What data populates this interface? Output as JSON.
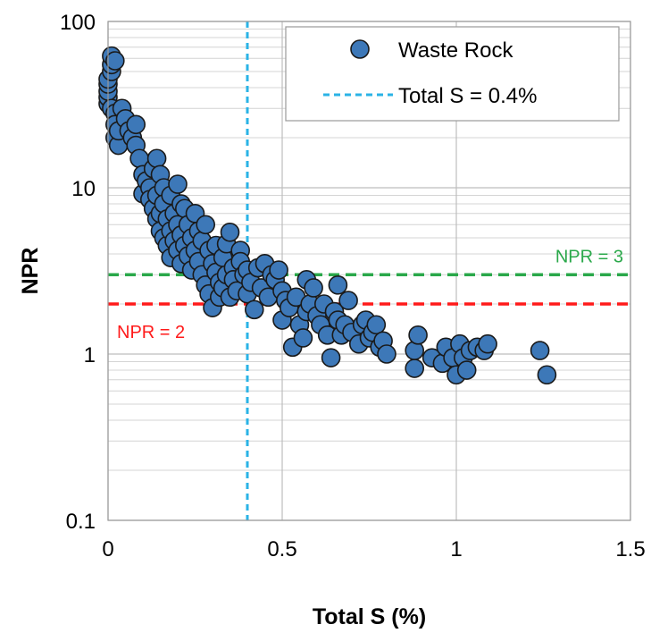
{
  "chart_data": {
    "type": "scatter",
    "title": "",
    "xlabel": "Total S (%)",
    "ylabel": "NPR",
    "xlim": [
      0,
      1.5
    ],
    "ylim": [
      0.1,
      100
    ],
    "yscale": "log",
    "grid": true,
    "legend_position": "top-right",
    "x_ticks": [
      0,
      0.5,
      1,
      1.5
    ],
    "x_tick_labels": [
      "0",
      "0.5",
      "1",
      "1.5"
    ],
    "y_ticks": [
      0.1,
      1,
      10,
      100
    ],
    "y_tick_labels": [
      "0.1",
      "1",
      "10",
      "100"
    ],
    "series": [
      {
        "name": "Waste Rock",
        "color": "#3d78b8",
        "points": [
          [
            0.0,
            32
          ],
          [
            0.0,
            35
          ],
          [
            0.0,
            38
          ],
          [
            0.0,
            42
          ],
          [
            0.0,
            45
          ],
          [
            0.01,
            50
          ],
          [
            0.01,
            55
          ],
          [
            0.01,
            62
          ],
          [
            0.02,
            58
          ],
          [
            0.01,
            30
          ],
          [
            0.02,
            28
          ],
          [
            0.02,
            24
          ],
          [
            0.02,
            20
          ],
          [
            0.03,
            18
          ],
          [
            0.03,
            22
          ],
          [
            0.04,
            30
          ],
          [
            0.05,
            26
          ],
          [
            0.06,
            22
          ],
          [
            0.07,
            20
          ],
          [
            0.08,
            24
          ],
          [
            0.08,
            18
          ],
          [
            0.09,
            15
          ],
          [
            0.1,
            12
          ],
          [
            0.1,
            9.2
          ],
          [
            0.11,
            11
          ],
          [
            0.12,
            10
          ],
          [
            0.12,
            8.5
          ],
          [
            0.13,
            13
          ],
          [
            0.13,
            7.5
          ],
          [
            0.14,
            9
          ],
          [
            0.14,
            6.5
          ],
          [
            0.14,
            15
          ],
          [
            0.15,
            12
          ],
          [
            0.15,
            7
          ],
          [
            0.15,
            5.5
          ],
          [
            0.16,
            10
          ],
          [
            0.16,
            8
          ],
          [
            0.16,
            5
          ],
          [
            0.17,
            6.5
          ],
          [
            0.17,
            4.5
          ],
          [
            0.18,
            9
          ],
          [
            0.18,
            5.5
          ],
          [
            0.18,
            3.8
          ],
          [
            0.19,
            7
          ],
          [
            0.19,
            4.8
          ],
          [
            0.2,
            6
          ],
          [
            0.2,
            4.2
          ],
          [
            0.2,
            10.5
          ],
          [
            0.21,
            8
          ],
          [
            0.21,
            5.2
          ],
          [
            0.21,
            3.5
          ],
          [
            0.22,
            7.5
          ],
          [
            0.22,
            4.5
          ],
          [
            0.23,
            6
          ],
          [
            0.23,
            3.9
          ],
          [
            0.24,
            5
          ],
          [
            0.24,
            3.2
          ],
          [
            0.25,
            7
          ],
          [
            0.25,
            4.2
          ],
          [
            0.26,
            5.5
          ],
          [
            0.26,
            3.6
          ],
          [
            0.27,
            4.8
          ],
          [
            0.27,
            3.0
          ],
          [
            0.28,
            6
          ],
          [
            0.28,
            2.6
          ],
          [
            0.29,
            4.2
          ],
          [
            0.29,
            2.3
          ],
          [
            0.3,
            3.5
          ],
          [
            0.3,
            1.9
          ],
          [
            0.31,
            3.1
          ],
          [
            0.31,
            4.5
          ],
          [
            0.32,
            2.7
          ],
          [
            0.32,
            2.2
          ],
          [
            0.33,
            3.8
          ],
          [
            0.33,
            2.5
          ],
          [
            0.34,
            4.6
          ],
          [
            0.34,
            3.0
          ],
          [
            0.35,
            5.4
          ],
          [
            0.35,
            2.2
          ],
          [
            0.36,
            3.3
          ],
          [
            0.36,
            2.8
          ],
          [
            0.37,
            2.4
          ],
          [
            0.38,
            4.2
          ],
          [
            0.38,
            3.6
          ],
          [
            0.39,
            3.0
          ],
          [
            0.4,
            3.2
          ],
          [
            0.4,
            2.3
          ],
          [
            0.41,
            2.7
          ],
          [
            0.42,
            1.85
          ],
          [
            0.43,
            3.3
          ],
          [
            0.44,
            2.5
          ],
          [
            0.45,
            3.5
          ],
          [
            0.46,
            2.2
          ],
          [
            0.47,
            3.0
          ],
          [
            0.48,
            2.8
          ],
          [
            0.49,
            3.2
          ],
          [
            0.5,
            1.6
          ],
          [
            0.5,
            2.4
          ],
          [
            0.51,
            2.1
          ],
          [
            0.52,
            1.9
          ],
          [
            0.53,
            1.1
          ],
          [
            0.54,
            2.2
          ],
          [
            0.55,
            1.5
          ],
          [
            0.56,
            1.25
          ],
          [
            0.57,
            1.8
          ],
          [
            0.57,
            2.8
          ],
          [
            0.58,
            2.0
          ],
          [
            0.59,
            2.5
          ],
          [
            0.6,
            1.7
          ],
          [
            0.61,
            1.5
          ],
          [
            0.62,
            2.0
          ],
          [
            0.63,
            1.3
          ],
          [
            0.64,
            0.95
          ],
          [
            0.65,
            1.8
          ],
          [
            0.66,
            1.6
          ],
          [
            0.66,
            2.6
          ],
          [
            0.67,
            1.3
          ],
          [
            0.68,
            1.5
          ],
          [
            0.69,
            2.1
          ],
          [
            0.7,
            1.35
          ],
          [
            0.72,
            1.15
          ],
          [
            0.73,
            1.5
          ],
          [
            0.74,
            1.6
          ],
          [
            0.75,
            1.25
          ],
          [
            0.76,
            1.35
          ],
          [
            0.77,
            1.5
          ],
          [
            0.78,
            1.1
          ],
          [
            0.79,
            1.2
          ],
          [
            0.8,
            1.0
          ],
          [
            0.88,
            0.82
          ],
          [
            0.88,
            1.05
          ],
          [
            0.89,
            1.3
          ],
          [
            0.93,
            0.95
          ],
          [
            0.96,
            0.88
          ],
          [
            0.97,
            1.1
          ],
          [
            0.99,
            0.95
          ],
          [
            1.0,
            0.75
          ],
          [
            1.01,
            1.15
          ],
          [
            1.02,
            0.95
          ],
          [
            1.03,
            0.8
          ],
          [
            1.04,
            1.05
          ],
          [
            1.06,
            1.1
          ],
          [
            1.08,
            1.05
          ],
          [
            1.09,
            1.15
          ],
          [
            1.24,
            1.05
          ],
          [
            1.26,
            0.75
          ]
        ]
      }
    ],
    "reference_lines": [
      {
        "orientation": "vertical",
        "value": 0.4,
        "label": "Total S = 0.4%",
        "color": "#2ab3e6",
        "in_legend": true
      },
      {
        "orientation": "horizontal",
        "value": 3,
        "label": "NPR = 3",
        "color": "#2aa84a",
        "in_legend": false
      },
      {
        "orientation": "horizontal",
        "value": 2,
        "label": "NPR = 2",
        "color": "#ff1a1a",
        "in_legend": false
      }
    ]
  }
}
